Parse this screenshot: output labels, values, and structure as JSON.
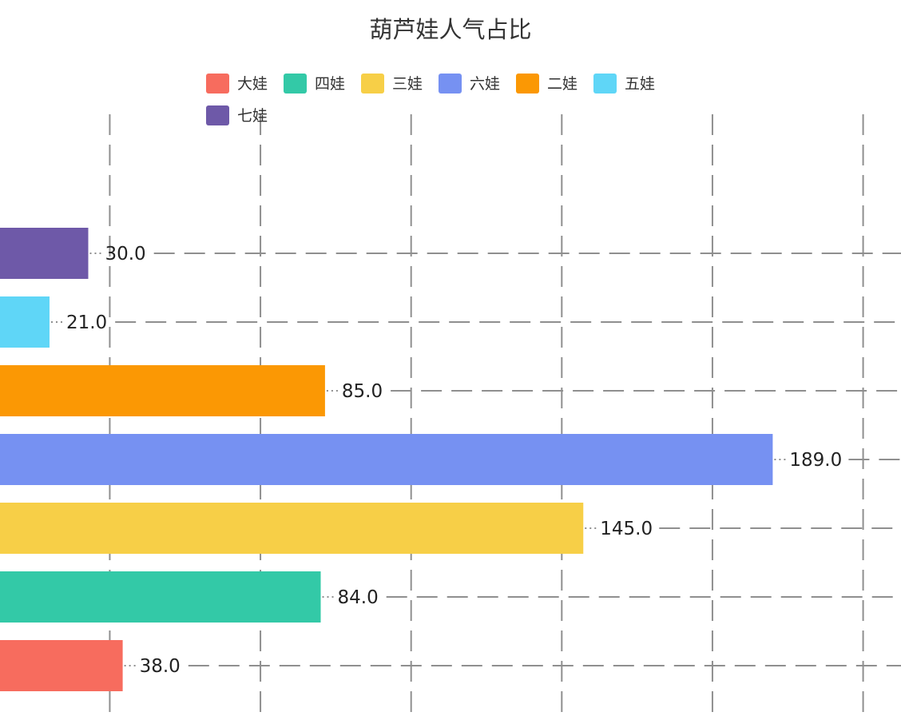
{
  "chart_data": {
    "type": "bar",
    "orientation": "horizontal",
    "title": "葫芦娃人气占比",
    "categories": [
      "大娃",
      "四娃",
      "三娃",
      "六娃",
      "二娃",
      "五娃",
      "七娃"
    ],
    "values": [
      38.0,
      84.0,
      145.0,
      189.0,
      85.0,
      21.0,
      30.0
    ],
    "value_labels": [
      "38.0",
      "84.0",
      "145.0",
      "189.0",
      "85.0",
      "21.0",
      "30.0"
    ],
    "colors": [
      "#f76c5e",
      "#33c9a7",
      "#f7cf47",
      "#7691f2",
      "#fb9804",
      "#5fd6f7",
      "#6e59a8"
    ],
    "legend": {
      "position": "top",
      "entries": [
        "大娃",
        "四娃",
        "三娃",
        "六娃",
        "二娃",
        "五娃",
        "七娃"
      ]
    },
    "grid": true,
    "grid_style": "dashed",
    "xlim": [
      -10,
      200
    ]
  }
}
